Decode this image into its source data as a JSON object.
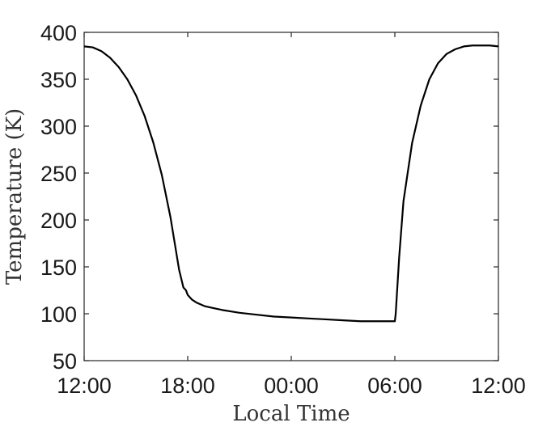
{
  "chart_data": {
    "type": "line",
    "title": "",
    "xlabel": "Local Time",
    "ylabel": "Temperature (K)",
    "x_tick_labels": [
      "12:00",
      "18:00",
      "00:00",
      "06:00",
      "12:00"
    ],
    "y_tick_labels": [
      "50",
      "100",
      "150",
      "200",
      "250",
      "300",
      "350",
      "400"
    ],
    "xlim": [
      0,
      24
    ],
    "ylim": [
      50,
      400
    ],
    "grid": false,
    "series": [
      {
        "color": "#000000",
        "x": [
          0,
          0.5,
          1,
          1.5,
          2,
          2.5,
          3,
          3.5,
          4,
          4.5,
          5,
          5.25,
          5.5,
          5.75,
          5.9,
          6.0,
          6.25,
          6.5,
          7,
          7.5,
          8,
          9,
          10,
          11,
          12,
          13,
          14,
          15,
          16,
          17,
          17.5,
          17.9,
          18.0,
          18.05,
          18.25,
          18.5,
          19,
          19.5,
          20,
          20.5,
          21,
          21.5,
          22,
          22.5,
          23,
          23.5,
          24
        ],
        "y": [
          385,
          384,
          380,
          373,
          363,
          350,
          333,
          311,
          283,
          248,
          203,
          175,
          147,
          128,
          125,
          120,
          115,
          112,
          108,
          106,
          104,
          101,
          99,
          97,
          96,
          95,
          94,
          93,
          92,
          92,
          92,
          92,
          92,
          100,
          160,
          220,
          282,
          322,
          350,
          367,
          377,
          382,
          385,
          386,
          386,
          386,
          385
        ]
      }
    ]
  }
}
